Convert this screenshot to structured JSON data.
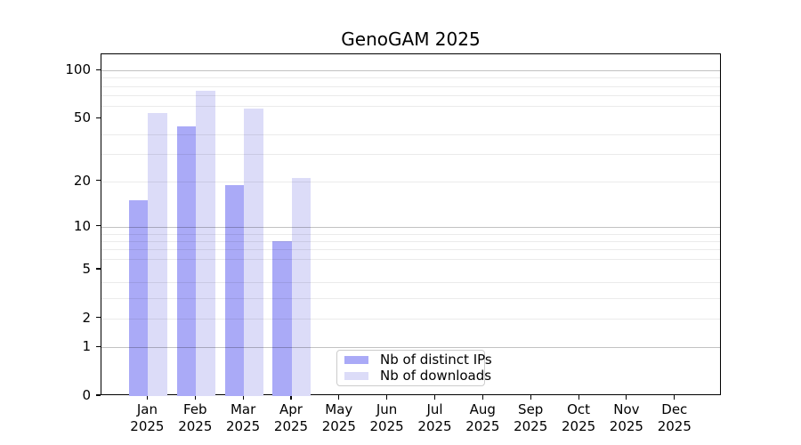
{
  "chart_data": {
    "type": "bar",
    "title": "GenoGAM 2025",
    "year_label": "2025",
    "months": [
      "Jan",
      "Feb",
      "Mar",
      "Apr",
      "May",
      "Jun",
      "Jul",
      "Aug",
      "Sep",
      "Oct",
      "Nov",
      "Dec"
    ],
    "series": [
      {
        "name": "Nb of distinct IPs",
        "color": "#aaaaf7",
        "values": [
          15,
          45,
          19,
          8,
          null,
          null,
          null,
          null,
          null,
          null,
          null,
          null
        ]
      },
      {
        "name": "Nb of downloads",
        "color": "#dcdcf8",
        "values": [
          54,
          75,
          58,
          21,
          null,
          null,
          null,
          null,
          null,
          null,
          null,
          null
        ]
      }
    ],
    "y_axis": {
      "scale": "log1p",
      "ylim": [
        0,
        126
      ],
      "tick_labels": [
        0,
        1,
        2,
        5,
        10,
        20,
        50,
        100
      ],
      "major_gridlines": [
        1,
        10,
        100
      ],
      "minor_gridlines": [
        2,
        3,
        4,
        6,
        7,
        8,
        9,
        20,
        30,
        40,
        60,
        70,
        80,
        90
      ],
      "grid": true
    },
    "legend_position": "lower-center"
  },
  "colors": {
    "distinct_ips_bar": "#aaaaf7",
    "downloads_bar": "#dcdcf8",
    "axis": "#000000",
    "legend_border": "#cccccc",
    "background": "#ffffff"
  }
}
